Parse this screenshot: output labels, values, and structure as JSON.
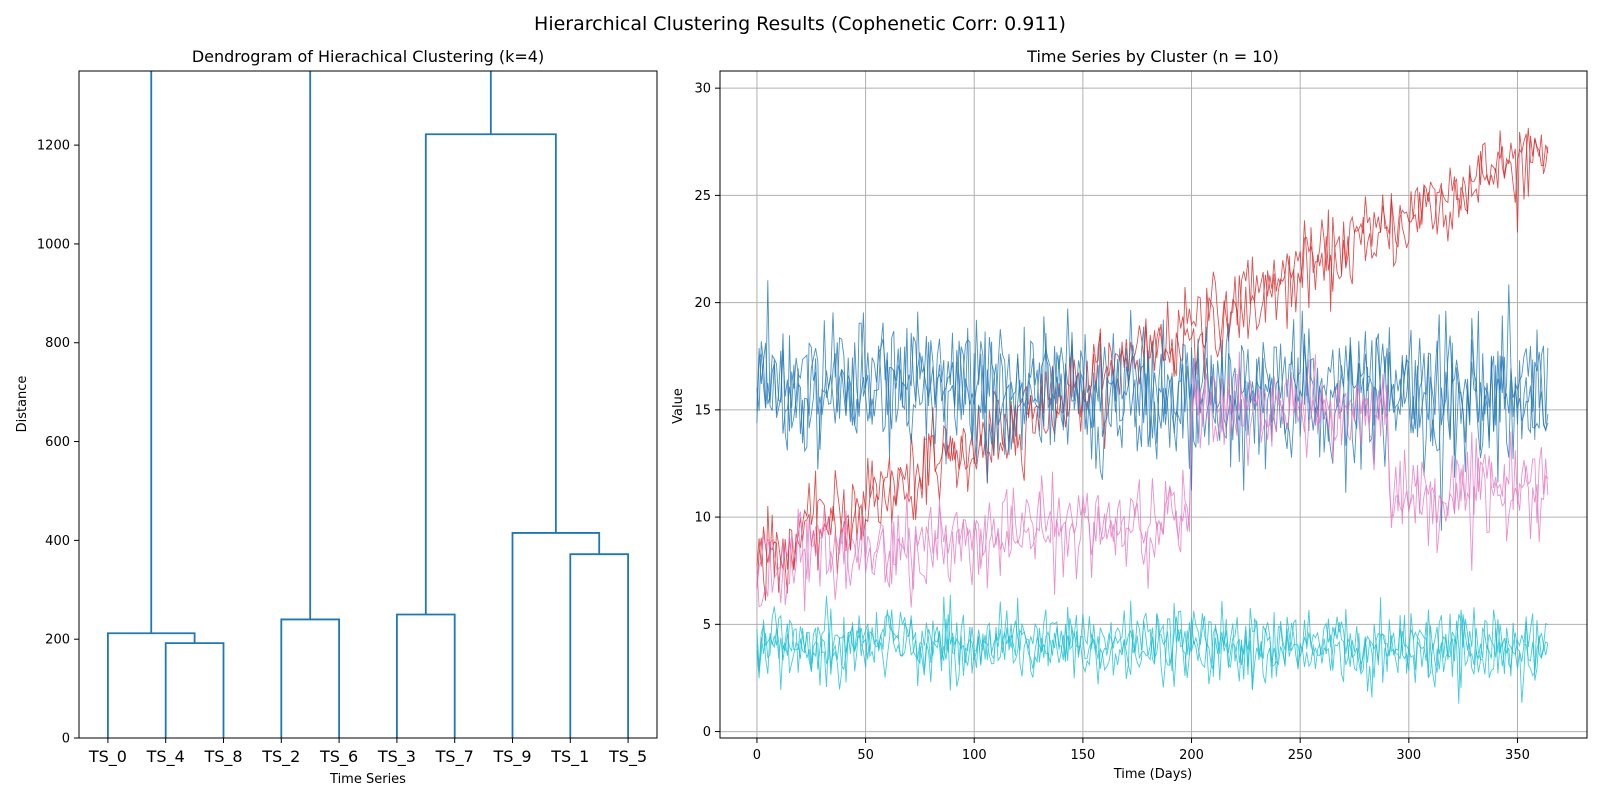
{
  "figure": {
    "suptitle": "Hierarchical Clustering Results (Cophenetic Corr: 0.911)"
  },
  "chart_data": [
    {
      "type": "dendrogram",
      "title": "Dendrogram of Hierachical Clustering (k=4)",
      "xlabel": "Time Series",
      "ylabel": "Distance",
      "ylim": [
        0,
        1350
      ],
      "yticks": [
        0,
        200,
        400,
        600,
        800,
        1000,
        1200
      ],
      "leaves": [
        "TS_0",
        "TS_4",
        "TS_8",
        "TS_2",
        "TS_6",
        "TS_3",
        "TS_7",
        "TS_9",
        "TS_1",
        "TS_5"
      ],
      "link_color": "#1f77b4",
      "merges": [
        {
          "children": [
            "TS_4",
            "TS_8"
          ],
          "height": 192
        },
        {
          "children": [
            "TS_0",
            "(TS_4,TS_8)"
          ],
          "height": 212
        },
        {
          "children": [
            "TS_2",
            "TS_6"
          ],
          "height": 240
        },
        {
          "children": [
            "TS_3",
            "TS_7"
          ],
          "height": 250
        },
        {
          "children": [
            "TS_1",
            "TS_5"
          ],
          "height": 372
        },
        {
          "children": [
            "TS_9",
            "(TS_1,TS_5)"
          ],
          "height": 415
        },
        {
          "children": [
            "(TS_3,TS_7)",
            "(TS_9,(TS_1,TS_5))"
          ],
          "height": 1222
        },
        {
          "children": [
            "(TS_0,(TS_4,TS_8))",
            "(TS_2,TS_6)"
          ],
          "height": 1350
        },
        {
          "children": [
            "(TS_3,TS_7)+(TS_9,(TS_1,TS_5))",
            "rest"
          ],
          "height": 1350
        }
      ],
      "grid": false
    },
    {
      "type": "line",
      "title": "Time Series by Cluster (n = 10)",
      "xlabel": "Time (Days)",
      "ylabel": "Value",
      "xlim": [
        -17,
        382
      ],
      "ylim": [
        -0.3,
        30.8
      ],
      "xticks": [
        0,
        50,
        100,
        150,
        200,
        250,
        300,
        350
      ],
      "yticks": [
        0,
        5,
        10,
        15,
        20,
        25,
        30
      ],
      "grid": true,
      "x_range": [
        0,
        364
      ],
      "clusters": [
        {
          "color": "#d62728",
          "series_count": 2,
          "description": "linear trend",
          "start": 8,
          "end": 27.5,
          "noise": 1.0
        },
        {
          "color": "#1f77b4",
          "series_count": 3,
          "description": "flat noisy",
          "level": 15.8,
          "noise": 1.6
        },
        {
          "color": "#e377c2",
          "series_count": 2,
          "description": "piecewise level shifts",
          "segments": [
            {
              "from": 0,
              "to": 199,
              "start": 8,
              "end": 10
            },
            {
              "from": 200,
              "to": 290,
              "start": 15,
              "end": 15
            },
            {
              "from": 291,
              "to": 364,
              "start": 11,
              "end": 11.5
            }
          ],
          "noise": 1.0
        },
        {
          "color": "#17becf",
          "series_count": 3,
          "description": "low flat noisy",
          "level": 4.0,
          "noise": 0.8
        }
      ]
    }
  ]
}
